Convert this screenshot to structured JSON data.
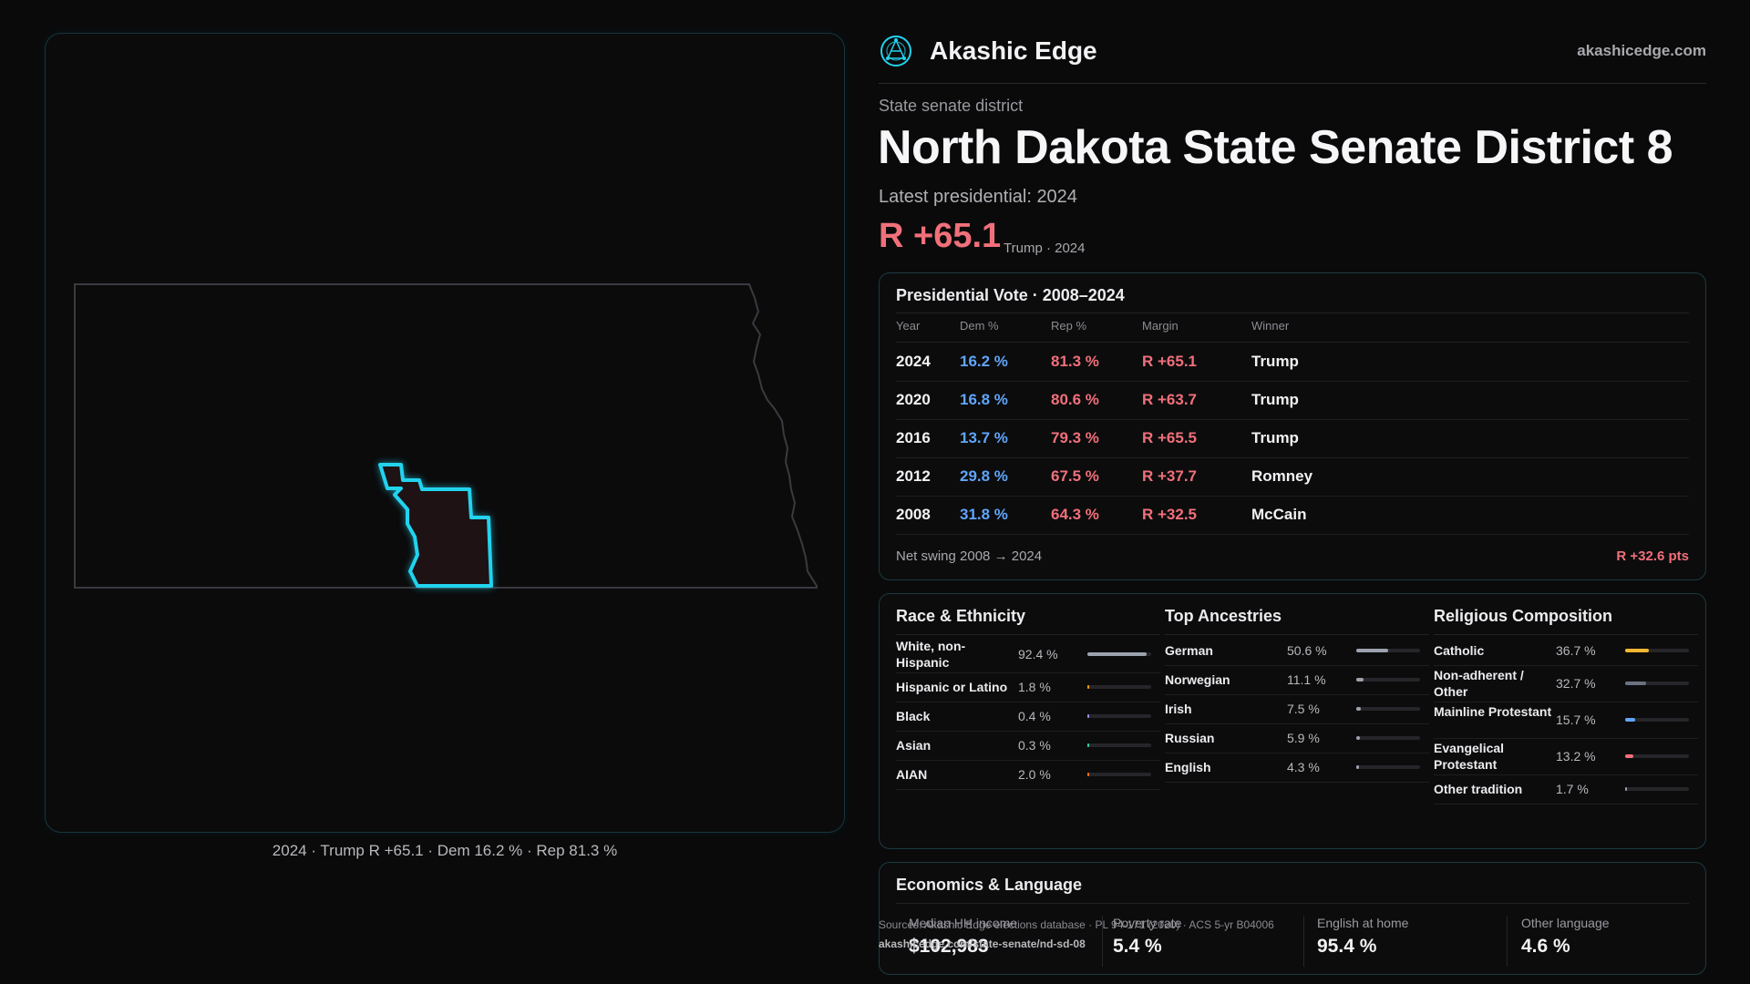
{
  "brand": {
    "name": "Akashic Edge",
    "site": "akashicedge.com",
    "logo_icon": "network-globe-icon",
    "accent": "#22d3ee"
  },
  "district": {
    "kind": "State senate district",
    "title": "North Dakota State Senate District 8",
    "latest": "Latest presidential: 2024",
    "margin": "R +65.1",
    "margin_sub": "Trump · 2024"
  },
  "map": {
    "caption": "2024 · Trump R +65.1 · Dem 16.2 % · Rep 81.3 %",
    "highlight_color": "#22d3ee",
    "fill_color": "#1f1214"
  },
  "presidential": {
    "title": "Presidential Vote · 2008–2024",
    "headers": {
      "year": "Year",
      "dem": "Dem %",
      "rep": "Rep %",
      "margin": "Margin",
      "winner": "Winner"
    },
    "rows": [
      {
        "year": "2024",
        "dem": "16.2 %",
        "rep": "81.3 %",
        "margin": "R +65.1",
        "winner": "Trump"
      },
      {
        "year": "2020",
        "dem": "16.8 %",
        "rep": "80.6 %",
        "margin": "R +63.7",
        "winner": "Trump"
      },
      {
        "year": "2016",
        "dem": "13.7 %",
        "rep": "79.3 %",
        "margin": "R +65.5",
        "winner": "Trump"
      },
      {
        "year": "2012",
        "dem": "29.8 %",
        "rep": "67.5 %",
        "margin": "R +37.7",
        "winner": "Romney"
      },
      {
        "year": "2008",
        "dem": "31.8 %",
        "rep": "64.3 %",
        "margin": "R +32.5",
        "winner": "McCain"
      }
    ],
    "swing_label": "Net swing 2008 → 2024",
    "swing_value": "R +32.6 pts",
    "dem_color": "#60a5fa",
    "rep_color": "#f0707a"
  },
  "race": {
    "title": "Race & Ethnicity",
    "items": [
      {
        "label": "White, non-Hispanic",
        "value": "92.4 %",
        "pct": 92.4,
        "color": "#9ca3af"
      },
      {
        "label": "Hispanic or Latino",
        "value": "1.8 %",
        "pct": 1.8,
        "color": "#f59e0b"
      },
      {
        "label": "Black",
        "value": "0.4 %",
        "pct": 0.4,
        "color": "#a78bfa"
      },
      {
        "label": "Asian",
        "value": "0.3 %",
        "pct": 0.3,
        "color": "#34d399"
      },
      {
        "label": "AIAN",
        "value": "2.0 %",
        "pct": 2.0,
        "color": "#f97316"
      }
    ]
  },
  "ancestry": {
    "title": "Top Ancestries",
    "items": [
      {
        "label": "German",
        "value": "50.6 %",
        "pct": 50.6,
        "color": "#9ca3af"
      },
      {
        "label": "Norwegian",
        "value": "11.1 %",
        "pct": 11.1,
        "color": "#9ca3af"
      },
      {
        "label": "Irish",
        "value": "7.5 %",
        "pct": 7.5,
        "color": "#9ca3af"
      },
      {
        "label": "Russian",
        "value": "5.9 %",
        "pct": 5.9,
        "color": "#9ca3af"
      },
      {
        "label": "English",
        "value": "4.3 %",
        "pct": 4.3,
        "color": "#9ca3af"
      }
    ]
  },
  "religion": {
    "title": "Religious Composition",
    "items": [
      {
        "label": "Catholic",
        "value": "36.7 %",
        "pct": 36.7,
        "color": "#f5b731"
      },
      {
        "label": "Non-adherent / Other",
        "value": "32.7 %",
        "pct": 32.7,
        "color": "#6b7280"
      },
      {
        "label": "Mainline Protestant",
        "value": "15.7 %",
        "pct": 15.7,
        "color": "#60a5fa"
      },
      {
        "label": "Evangelical Protestant",
        "value": "13.2 %",
        "pct": 13.2,
        "color": "#f0707a"
      },
      {
        "label": "Other tradition",
        "value": "1.7 %",
        "pct": 1.7,
        "color": "#9ca3af"
      }
    ]
  },
  "economics": {
    "title": "Economics & Language",
    "items": [
      {
        "label": "Median HH income",
        "value": "$102,983"
      },
      {
        "label": "Poverty rate",
        "value": "5.4 %"
      },
      {
        "label": "English at home",
        "value": "95.4 %"
      },
      {
        "label": "Other language",
        "value": "4.6 %"
      }
    ]
  },
  "source": {
    "text": "Sources: Akashic Edge elections database · PL 94-171 (2020) · ACS 5-yr B04006",
    "url": "akashicedge.com/state-senate/nd-sd-08"
  }
}
